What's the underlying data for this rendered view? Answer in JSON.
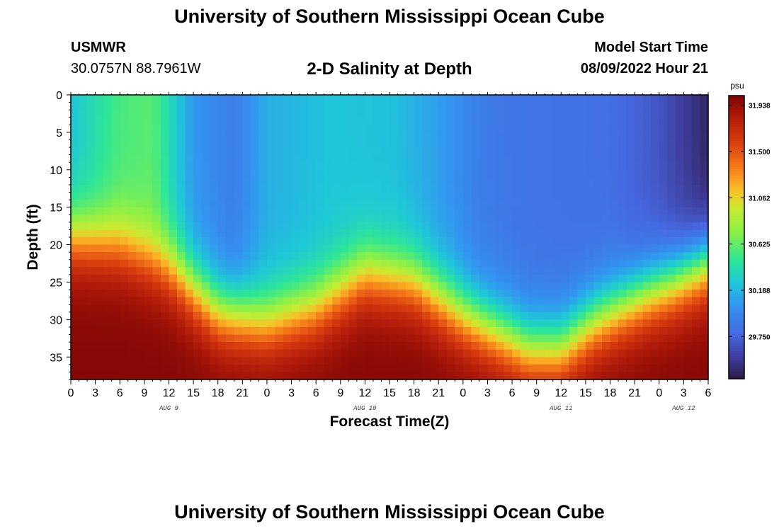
{
  "header": {
    "title_top": "University of Southern Mississippi Ocean Cube",
    "title_bottom": "University of Southern Mississippi Ocean Cube",
    "station": "USMWR",
    "coords": "30.0757N  88.7961W",
    "model_label": "Model Start Time",
    "model_time": "08/09/2022 Hour 21"
  },
  "chart_data": {
    "type": "heatmap",
    "title": "2-D Salinity at Depth",
    "xlabel": "Forecast Time(Z)",
    "ylabel": "Depth (ft)",
    "x_tick_labels": [
      "0",
      "3",
      "6",
      "9",
      "12",
      "15",
      "18",
      "21",
      "0",
      "3",
      "6",
      "9",
      "12",
      "15",
      "18",
      "21",
      "0",
      "3",
      "6",
      "9",
      "12",
      "15",
      "18",
      "21",
      "0",
      "3",
      "6"
    ],
    "x_ticks_hours": [
      0,
      3,
      6,
      9,
      12,
      15,
      18,
      21,
      24,
      27,
      30,
      33,
      36,
      39,
      42,
      45,
      48,
      51,
      54,
      57,
      60,
      63,
      66,
      69,
      72,
      75,
      78
    ],
    "xlim_hours": [
      0,
      78
    ],
    "date_labels": [
      {
        "hour": 12,
        "text": "AUG 9"
      },
      {
        "hour": 36,
        "text": "AUG 10"
      },
      {
        "hour": 60,
        "text": "AUG 11"
      },
      {
        "hour": 75,
        "text": "AUG 12"
      }
    ],
    "y_ticks": [
      0,
      5,
      10,
      15,
      20,
      25,
      30,
      35
    ],
    "ylim": [
      0,
      38
    ],
    "colorbar": {
      "unit": "psu",
      "ticks": [
        29.75,
        30.188,
        30.625,
        31.062,
        31.5,
        31.938
      ],
      "tick_labels": [
        "29.750",
        "30.188",
        "30.625",
        "31.062",
        "31.500",
        "31.938"
      ],
      "range": [
        29.35,
        32.03
      ]
    },
    "surface_salinity_psu": [
      {
        "hour": 0,
        "value": 30.25
      },
      {
        "hour": 6,
        "value": 30.55
      },
      {
        "hour": 10,
        "value": 30.6
      },
      {
        "hour": 15,
        "value": 30.05
      },
      {
        "hour": 20,
        "value": 29.9
      },
      {
        "hour": 24,
        "value": 30.15
      },
      {
        "hour": 32,
        "value": 30.25
      },
      {
        "hour": 40,
        "value": 30.22
      },
      {
        "hour": 46,
        "value": 30.05
      },
      {
        "hour": 50,
        "value": 29.9
      },
      {
        "hour": 56,
        "value": 29.85
      },
      {
        "hour": 66,
        "value": 29.82
      },
      {
        "hour": 72,
        "value": 29.68
      },
      {
        "hour": 78,
        "value": 29.42
      }
    ],
    "halocline_depth_ft": [
      {
        "hour": 0,
        "value": 19
      },
      {
        "hour": 6,
        "value": 20
      },
      {
        "hour": 12,
        "value": 23
      },
      {
        "hour": 18,
        "value": 29
      },
      {
        "hour": 24,
        "value": 30.5
      },
      {
        "hour": 30,
        "value": 28.5
      },
      {
        "hour": 36,
        "value": 24
      },
      {
        "hour": 42,
        "value": 25
      },
      {
        "hour": 48,
        "value": 29.5
      },
      {
        "hour": 56,
        "value": 34
      },
      {
        "hour": 60,
        "value": 34
      },
      {
        "hour": 64,
        "value": 30.5
      },
      {
        "hour": 70,
        "value": 27
      },
      {
        "hour": 74,
        "value": 25
      },
      {
        "hour": 78,
        "value": 22.5
      }
    ],
    "bottom_salinity_psu": 32.0
  }
}
